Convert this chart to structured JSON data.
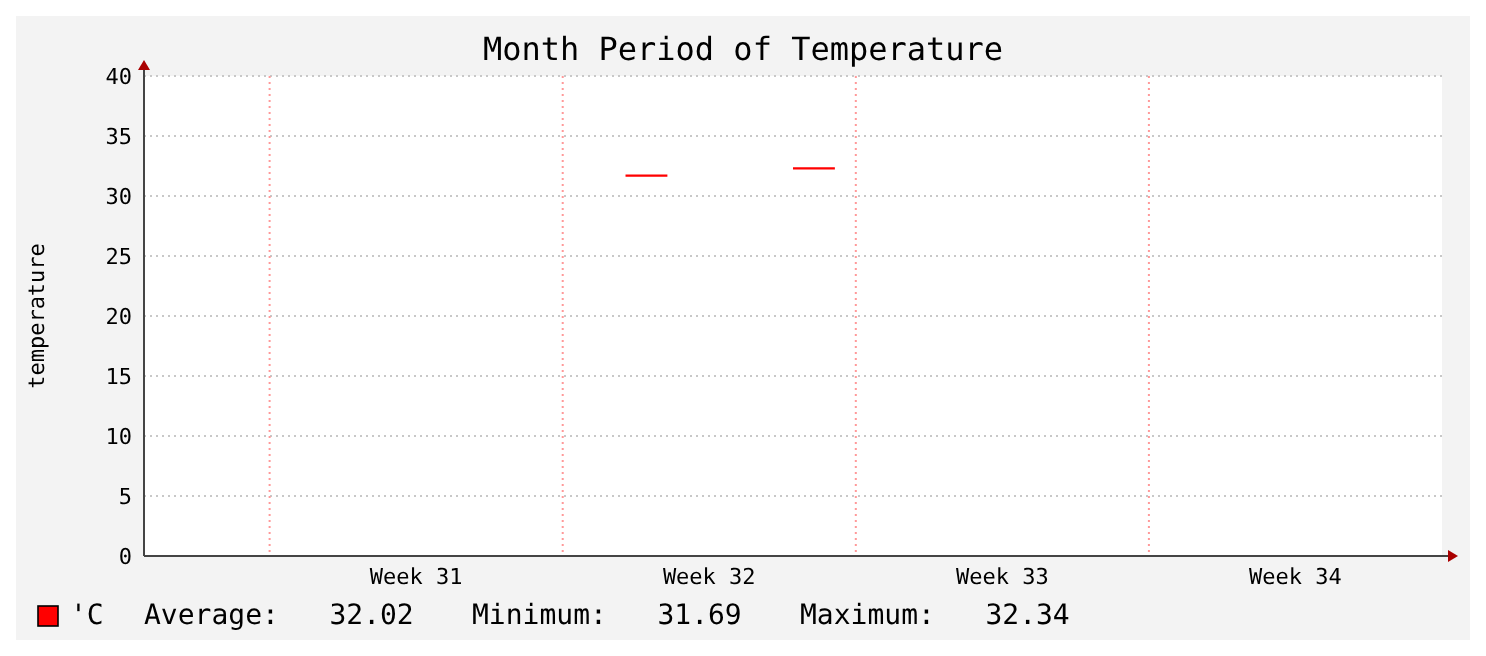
{
  "chart_data": {
    "type": "line",
    "marker": "none",
    "title": "Month Period of Temperature",
    "ylabel": "temperature",
    "categories": [
      null,
      null,
      null,
      null,
      null,
      null,
      "Week 31",
      null,
      null,
      null,
      null,
      null,
      null,
      "Week 32",
      null,
      null,
      null,
      null,
      null,
      null,
      "Week 33",
      null,
      null,
      null,
      null,
      null,
      null,
      "Week 34",
      null,
      null,
      null
    ],
    "ylim": [
      0,
      40
    ],
    "yticks": [
      0,
      5,
      10,
      15,
      20,
      25,
      30,
      35,
      40
    ],
    "grid": true,
    "legend": "bottom",
    "line_style": "solid",
    "series": [
      {
        "name": "'C",
        "color": "#ff0000",
        "values": [
          null,
          null,
          null,
          null,
          null,
          null,
          null,
          null,
          null,
          null,
          null,
          31.7,
          31.7,
          null,
          null,
          32.3,
          32.3,
          null,
          null,
          null,
          null,
          null,
          null,
          null,
          null,
          null,
          null,
          null,
          null,
          null,
          null
        ]
      }
    ],
    "annotations": [
      "Average:   32.02",
      "Minimum:   31.69",
      "Maximum:   32.34"
    ]
  }
}
